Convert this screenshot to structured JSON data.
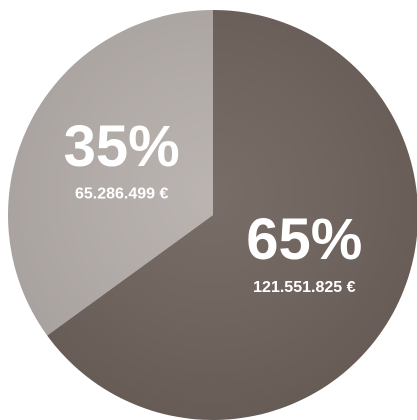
{
  "chart_data": {
    "type": "pie",
    "values": [
      65,
      35
    ],
    "value_labels": [
      "65%",
      "35%"
    ],
    "amounts": [
      121551825,
      65286499
    ],
    "amount_labels": [
      "121.551.825 €",
      "65.286.499 €"
    ],
    "colors": [
      "#6f635d",
      "#b6afac"
    ]
  }
}
